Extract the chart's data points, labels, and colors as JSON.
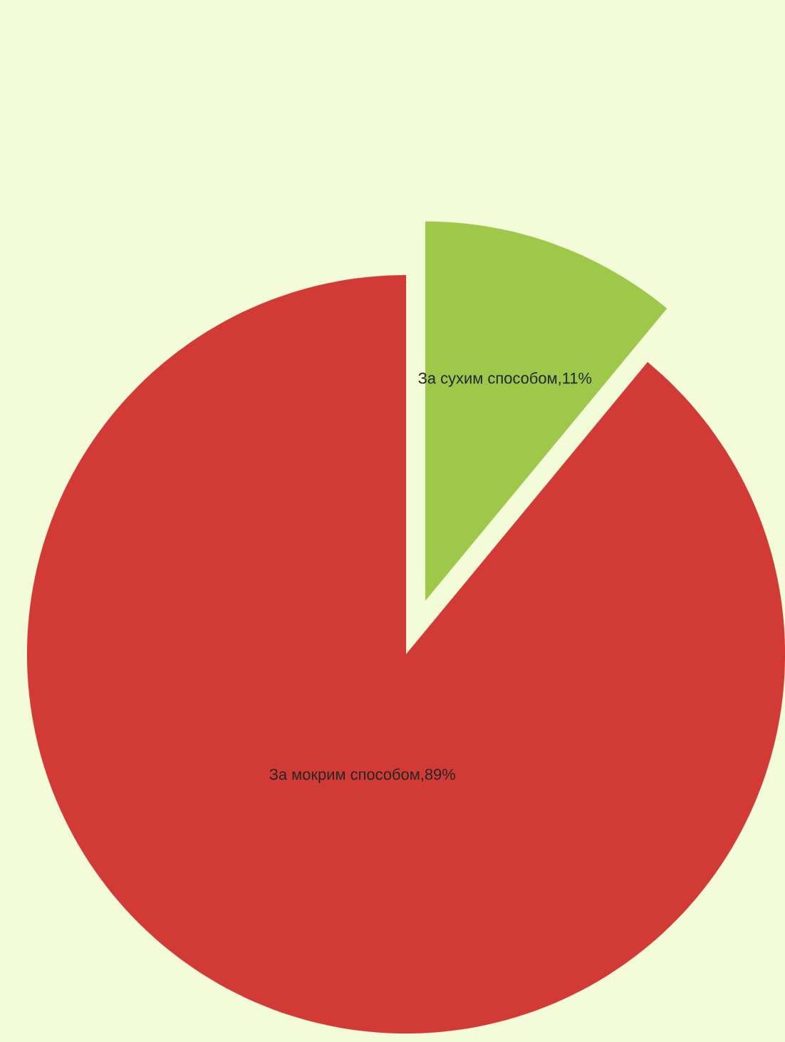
{
  "chart_data": {
    "type": "pie",
    "categories": [
      "За сухим способом",
      "За мокрим способом"
    ],
    "values": [
      11,
      89
    ],
    "colors": [
      "#9dc84a",
      "#d23a36"
    ],
    "value_labels": [
      ",11%",
      ",89%"
    ]
  }
}
